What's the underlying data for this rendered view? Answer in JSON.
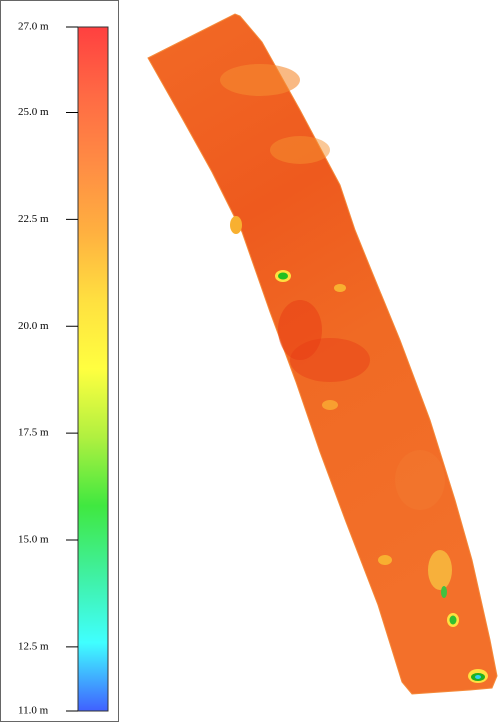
{
  "legend": {
    "range": [
      11,
      27
    ],
    "ticks": [
      {
        "value": 27,
        "label": "27.0 m"
      },
      {
        "value": 25,
        "label": "25.0 m"
      },
      {
        "value": 22.5,
        "label": "22.5 m"
      },
      {
        "value": 20,
        "label": "20.0 m"
      },
      {
        "value": 17.5,
        "label": "17.5 m"
      },
      {
        "value": 15,
        "label": "15.0 m"
      },
      {
        "value": 12.5,
        "label": "12.5 m"
      },
      {
        "value": 11,
        "label": "11.0 m"
      }
    ],
    "colors": [
      "#ff4040",
      "#ff6a44",
      "#ff8c44",
      "#ffb040",
      "#ffe040",
      "#ffff40",
      "#b0f040",
      "#40e840",
      "#40f0a0",
      "#40ffff",
      "#4060ff"
    ]
  }
}
